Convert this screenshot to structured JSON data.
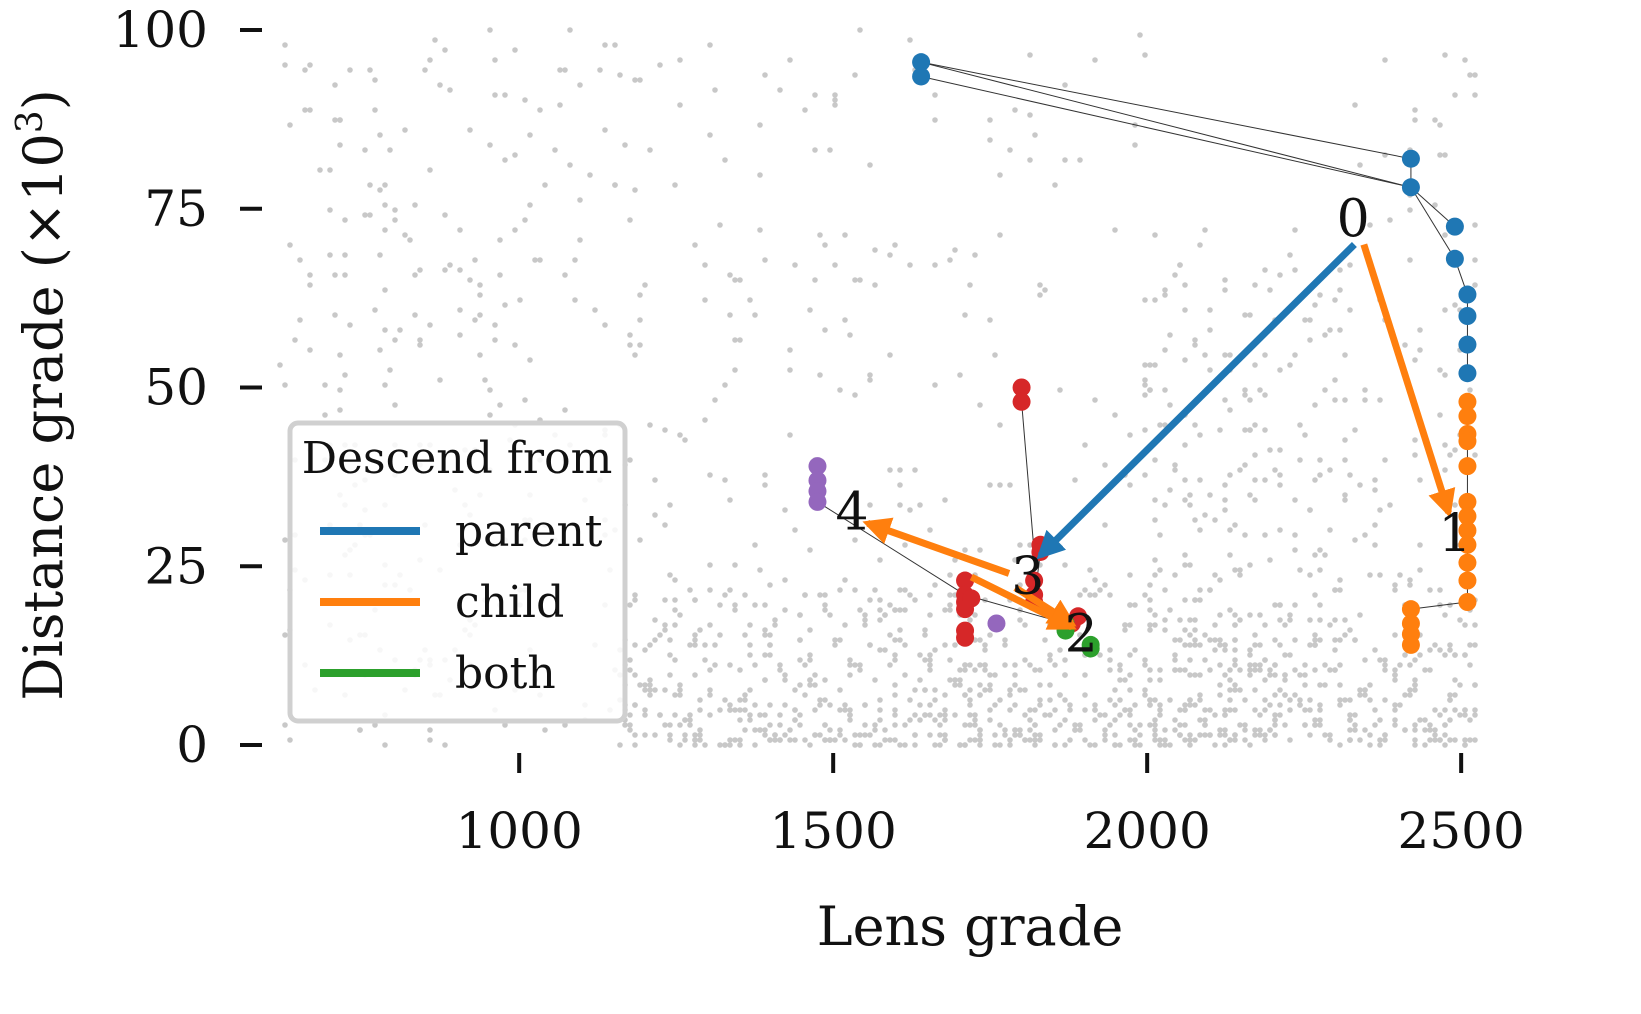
{
  "chart_data": {
    "type": "scatter",
    "xlabel": "Lens grade",
    "ylabel": "Distance grade (×10",
    "ylabel_sup": "3",
    "ylabel_close": ")",
    "xlim": [
      600,
      2530
    ],
    "ylim": [
      0,
      100
    ],
    "x_ticks": [
      1000,
      1500,
      2000,
      2500
    ],
    "y_ticks": [
      0,
      25,
      50,
      75,
      100
    ],
    "grid": false,
    "legend": {
      "title": "Descend from",
      "placement": "center-left",
      "entries": [
        {
          "label": "parent",
          "color": "#1f77b4"
        },
        {
          "label": "child",
          "color": "#ff7f0e"
        },
        {
          "label": "both",
          "color": "#2ca02c"
        }
      ]
    },
    "background_points_color": "#c8c8c8",
    "colors": {
      "parent": "#1f77b4",
      "child": "#ff7f0e",
      "both": "#2ca02c",
      "red": "#d62728",
      "purple": "#9467bd"
    },
    "clusters": [
      {
        "color": "#1f77b4",
        "points": [
          [
            1640,
            95.5
          ],
          [
            1640,
            93.5
          ],
          [
            2420,
            82
          ],
          [
            2420,
            78
          ],
          [
            2490,
            72.5
          ],
          [
            2490,
            68
          ],
          [
            2510,
            63
          ],
          [
            2510,
            60
          ],
          [
            2510,
            56
          ],
          [
            2510,
            52
          ]
        ]
      },
      {
        "color": "#ff7f0e",
        "points": [
          [
            2510,
            48
          ],
          [
            2510,
            46
          ],
          [
            2510,
            43.5
          ],
          [
            2510,
            42.5
          ],
          [
            2510,
            39
          ],
          [
            2510,
            34
          ],
          [
            2510,
            32
          ],
          [
            2510,
            30
          ],
          [
            2510,
            28
          ],
          [
            2510,
            25.5
          ],
          [
            2510,
            23
          ],
          [
            2510,
            20
          ],
          [
            2420,
            19
          ],
          [
            2420,
            17
          ],
          [
            2420,
            15.5
          ],
          [
            2420,
            14
          ]
        ]
      },
      {
        "color": "#d62728",
        "points": [
          [
            1800,
            50
          ],
          [
            1800,
            48
          ],
          [
            1830,
            28
          ],
          [
            1830,
            27
          ],
          [
            1820,
            23
          ],
          [
            1820,
            21
          ],
          [
            1820,
            20
          ],
          [
            1710,
            23
          ],
          [
            1710,
            21
          ],
          [
            1710,
            20
          ],
          [
            1710,
            19
          ],
          [
            1720,
            20.5
          ],
          [
            1710,
            16
          ],
          [
            1710,
            15
          ],
          [
            1890,
            18
          ],
          [
            1880,
            17
          ]
        ]
      },
      {
        "color": "#9467bd",
        "points": [
          [
            1475,
            39
          ],
          [
            1475,
            37
          ],
          [
            1475,
            35.5
          ],
          [
            1475,
            34
          ],
          [
            1760,
            17
          ]
        ]
      },
      {
        "color": "#2ca02c",
        "points": [
          [
            1870,
            17
          ],
          [
            1870,
            16
          ],
          [
            1910,
            14
          ],
          [
            1910,
            13.5
          ]
        ]
      }
    ],
    "connector_lines": [
      [
        [
          1640,
          95.5
        ],
        [
          2420,
          82
        ]
      ],
      [
        [
          1640,
          93.5
        ],
        [
          2420,
          78
        ]
      ],
      [
        [
          1640,
          95.5
        ],
        [
          2420,
          78
        ]
      ],
      [
        [
          2420,
          82
        ],
        [
          2420,
          78
        ]
      ],
      [
        [
          2420,
          78
        ],
        [
          2490,
          72.5
        ]
      ],
      [
        [
          2420,
          78
        ],
        [
          2490,
          68
        ]
      ],
      [
        [
          2490,
          68
        ],
        [
          2510,
          63
        ]
      ],
      [
        [
          2510,
          63
        ],
        [
          2510,
          52
        ]
      ],
      [
        [
          2510,
          48
        ],
        [
          2510,
          20
        ]
      ],
      [
        [
          2510,
          20
        ],
        [
          2420,
          19
        ]
      ],
      [
        [
          2420,
          19
        ],
        [
          2420,
          14
        ]
      ],
      [
        [
          1800,
          48
        ],
        [
          1820,
          27
        ]
      ],
      [
        [
          1475,
          34
        ],
        [
          1710,
          21
        ]
      ],
      [
        [
          1710,
          21
        ],
        [
          1870,
          17
        ]
      ],
      [
        [
          1830,
          27
        ],
        [
          1820,
          20
        ]
      ],
      [
        [
          1820,
          20
        ],
        [
          1870,
          17
        ]
      ]
    ],
    "arrows": [
      {
        "type": "parent",
        "from": [
          2330,
          70
        ],
        "to": [
          1830,
          26.5
        ]
      },
      {
        "type": "child",
        "from": [
          2345,
          70
        ],
        "to": [
          2480,
          32.5
        ]
      },
      {
        "type": "child",
        "from": [
          1780,
          24
        ],
        "to": [
          1555,
          31
        ]
      },
      {
        "type": "child",
        "from": [
          1790,
          22
        ],
        "to": [
          1880,
          17
        ]
      },
      {
        "type": "child",
        "from": [
          1720,
          23.5
        ],
        "to": [
          1880,
          16.5
        ]
      }
    ],
    "annotations": [
      {
        "label": "0",
        "x": 2328,
        "y": 73
      },
      {
        "label": "1",
        "x": 2490,
        "y": 29
      },
      {
        "label": "2",
        "x": 1895,
        "y": 15
      },
      {
        "label": "3",
        "x": 1810,
        "y": 23
      },
      {
        "label": "4",
        "x": 1530,
        "y": 32
      }
    ]
  }
}
